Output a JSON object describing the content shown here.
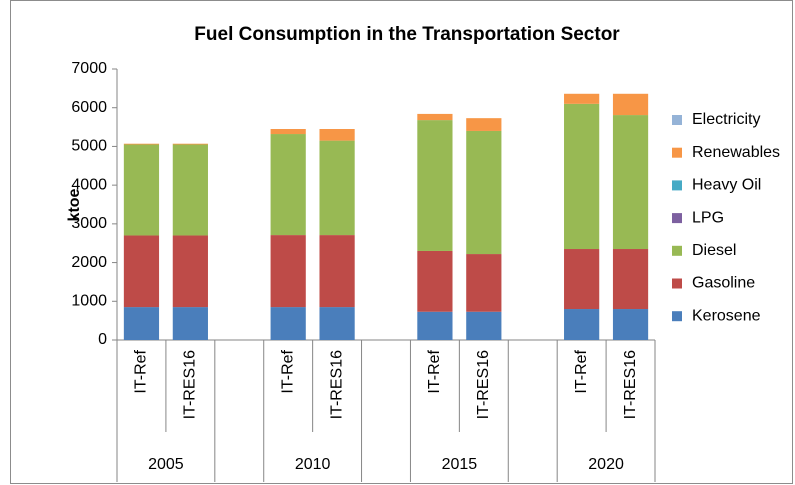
{
  "chart_data": {
    "type": "stacked_bar",
    "title": "Fuel Consumption in the Transportation Sector",
    "y_label": "ktoe",
    "categories": [
      "IT-Ref",
      "IT-RES16",
      null,
      "IT-Ref",
      "IT-RES16",
      null,
      "IT-Ref",
      "IT-RES16",
      null,
      "IT-Ref",
      "IT-RES16"
    ],
    "groups": [
      "2005",
      "2010",
      "2015",
      "2020"
    ],
    "series": [
      {
        "name": "Kerosene",
        "color": "#4a7ebb",
        "values": [
          850,
          850,
          null,
          850,
          850,
          null,
          730,
          730,
          null,
          800,
          800
        ]
      },
      {
        "name": "Gasoline",
        "color": "#be4b48",
        "values": [
          1850,
          1850,
          null,
          1860,
          1860,
          null,
          1570,
          1490,
          null,
          1550,
          1550
        ]
      },
      {
        "name": "Diesel",
        "color": "#98b954",
        "values": [
          2350,
          2350,
          null,
          2610,
          2440,
          null,
          3380,
          3180,
          null,
          3750,
          3460
        ]
      },
      {
        "name": "LPG",
        "color": "#7d60a0",
        "values": [
          0,
          0,
          null,
          0,
          0,
          null,
          0,
          0,
          null,
          0,
          0
        ]
      },
      {
        "name": "Heavy Oil",
        "color": "#46aac5",
        "values": [
          0,
          0,
          null,
          0,
          0,
          null,
          0,
          0,
          null,
          0,
          0
        ]
      },
      {
        "name": "Renewables",
        "color": "#f79646",
        "values": [
          20,
          20,
          null,
          130,
          300,
          null,
          160,
          330,
          null,
          260,
          550
        ]
      },
      {
        "name": "Electricity",
        "color": "#95b3d7",
        "values": [
          0,
          0,
          null,
          0,
          0,
          null,
          0,
          0,
          null,
          0,
          0
        ]
      }
    ],
    "ylim": [
      0,
      7000
    ],
    "yticks": [
      0,
      1000,
      2000,
      3000,
      4000,
      5000,
      6000,
      7000
    ],
    "grid": false,
    "legend": "right"
  }
}
